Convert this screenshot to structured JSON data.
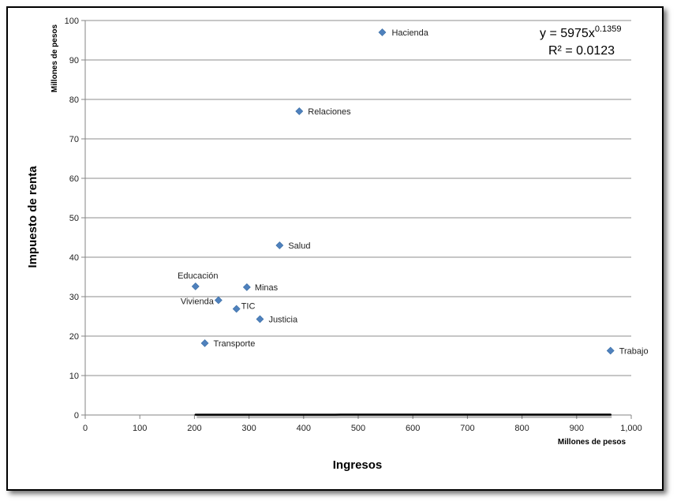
{
  "chart_data": {
    "type": "scatter",
    "title": "",
    "xlabel": "Ingresos",
    "ylabel": "Impuesto de renta",
    "x_unit": "Millones de pesos",
    "y_unit": "Millones de pesos",
    "xlim": [
      0,
      1000
    ],
    "ylim": [
      0,
      100
    ],
    "xticks": [
      0,
      100,
      200,
      300,
      400,
      500,
      600,
      700,
      800,
      900,
      1000
    ],
    "xtick_labels": [
      "0",
      "100",
      "200",
      "300",
      "400",
      "500",
      "600",
      "700",
      "800",
      "900",
      "1,000"
    ],
    "yticks": [
      0,
      10,
      20,
      30,
      40,
      50,
      60,
      70,
      80,
      90,
      100
    ],
    "ytick_labels": [
      "0",
      "10",
      "20",
      "30",
      "40",
      "50",
      "60",
      "70",
      "80",
      "90",
      "100"
    ],
    "grid": "horizontal",
    "marker_color": "#4f81bd",
    "trend_color": "#000000",
    "points": [
      {
        "label": "Hacienda",
        "x": 544,
        "y": 97
      },
      {
        "label": "Relaciones",
        "x": 392,
        "y": 77
      },
      {
        "label": "Salud",
        "x": 356,
        "y": 43
      },
      {
        "label": "Educación",
        "x": 202,
        "y": 32.6
      },
      {
        "label": "Minas",
        "x": 296,
        "y": 32.4
      },
      {
        "label": "Vivienda",
        "x": 244,
        "y": 29.1
      },
      {
        "label": "TIC",
        "x": 277,
        "y": 26.9
      },
      {
        "label": "Justicia",
        "x": 320,
        "y": 24.3
      },
      {
        "label": "Transporte",
        "x": 219,
        "y": 18.2
      },
      {
        "label": "Trabajo",
        "x": 962,
        "y": 16.3
      }
    ],
    "trendline": {
      "type": "power",
      "coefficient": 5975,
      "exponent": 0.1359,
      "x_range": [
        202,
        962
      ],
      "equation_base": "y = 5975x",
      "equation_exp": "0.1359",
      "r_squared": "R² = 0.0123"
    }
  }
}
